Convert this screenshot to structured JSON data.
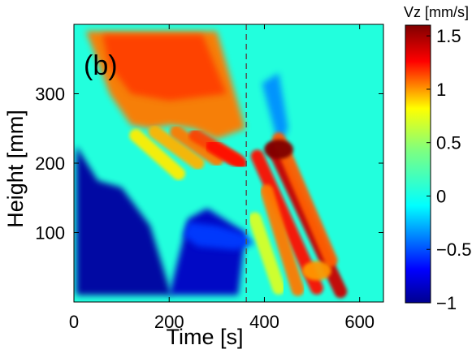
{
  "chart_data": {
    "type": "heatmap",
    "panel_label": "(b)",
    "xlabel": "Time [s]",
    "ylabel": "Height [mm]",
    "colorbar_label": "Vz [mm/s]",
    "xlim": [
      0,
      650
    ],
    "ylim": [
      0,
      400
    ],
    "clim": [
      -1,
      1.6
    ],
    "x_ticks": [
      0,
      200,
      400,
      600
    ],
    "x_tick_labels": [
      "0",
      "200",
      "400",
      "600"
    ],
    "y_ticks": [
      100,
      200,
      300
    ],
    "y_tick_labels": [
      "100",
      "200",
      "300"
    ],
    "colorbar_ticks": [
      -1,
      -0.5,
      0,
      0.5,
      1,
      1.5
    ],
    "colorbar_tick_labels": [
      "−1",
      "−0.5",
      "0",
      "0.5",
      "1",
      "1.5"
    ],
    "colormap": "jet",
    "vertical_marker": {
      "x": 362,
      "style": "dashed",
      "color": "#555555"
    },
    "background_value": 0.05,
    "regions": [
      {
        "name": "upper-descending-front",
        "shape": "polygon",
        "value": 1.05,
        "points": [
          [
            25,
            390
          ],
          [
            300,
            390
          ],
          [
            360,
            250
          ],
          [
            300,
            235
          ],
          [
            250,
            250
          ],
          [
            200,
            255
          ],
          [
            160,
            250
          ],
          [
            120,
            255
          ],
          [
            75,
            300
          ],
          [
            40,
            365
          ]
        ]
      },
      {
        "name": "upper-front-core",
        "shape": "polygon",
        "value": 1.15,
        "points": [
          [
            60,
            385
          ],
          [
            270,
            385
          ],
          [
            320,
            300
          ],
          [
            200,
            290
          ],
          [
            120,
            300
          ],
          [
            75,
            340
          ]
        ]
      },
      {
        "name": "left-descending-plume",
        "shape": "polygon",
        "value": -0.95,
        "points": [
          [
            5,
            10
          ],
          [
            5,
            225
          ],
          [
            50,
            175
          ],
          [
            100,
            165
          ],
          [
            160,
            110
          ],
          [
            205,
            10
          ]
        ]
      },
      {
        "name": "middle-descending-plume",
        "shape": "polygon",
        "value": -0.85,
        "points": [
          [
            200,
            10
          ],
          [
            240,
            120
          ],
          [
            280,
            135
          ],
          [
            360,
            100
          ],
          [
            345,
            10
          ]
        ]
      },
      {
        "name": "lower-center-band",
        "shape": "polygon",
        "value": -0.55,
        "points": [
          [
            230,
            95
          ],
          [
            240,
            115
          ],
          [
            300,
            110
          ],
          [
            350,
            100
          ],
          [
            380,
            85
          ],
          [
            340,
            75
          ],
          [
            260,
            80
          ]
        ]
      },
      {
        "name": "upper-right-negative-band",
        "shape": "polygon",
        "value": -0.35,
        "points": [
          [
            395,
            315
          ],
          [
            430,
            330
          ],
          [
            450,
            250
          ],
          [
            430,
            225
          ]
        ]
      }
    ],
    "streaks": [
      {
        "name": "streak-1",
        "x0": 130,
        "y0": 240,
        "x1": 220,
        "y1": 185,
        "value": 0.85
      },
      {
        "name": "streak-2",
        "x0": 170,
        "y0": 245,
        "x1": 260,
        "y1": 200,
        "value": 0.95
      },
      {
        "name": "streak-3",
        "x0": 215,
        "y0": 245,
        "x1": 300,
        "y1": 205,
        "value": 1.05
      },
      {
        "name": "streak-4",
        "x0": 255,
        "y0": 240,
        "x1": 340,
        "y1": 205,
        "value": 1.15
      },
      {
        "name": "streak-5",
        "x0": 290,
        "y0": 225,
        "x1": 350,
        "y1": 200,
        "value": 1.25
      },
      {
        "name": "diag-1",
        "x0": 385,
        "y0": 210,
        "x1": 510,
        "y1": 20,
        "value": 1.25
      },
      {
        "name": "diag-2",
        "x0": 420,
        "y0": 220,
        "x1": 560,
        "y1": 15,
        "value": 1.4
      },
      {
        "name": "diag-3",
        "x0": 405,
        "y0": 160,
        "x1": 470,
        "y1": 18,
        "value": 1.05
      },
      {
        "name": "diag-4",
        "x0": 430,
        "y0": 235,
        "x1": 540,
        "y1": 60,
        "value": 1.1
      },
      {
        "name": "diag-5",
        "x0": 380,
        "y0": 120,
        "x1": 430,
        "y1": 20,
        "value": 0.7
      }
    ],
    "hotspots": [
      {
        "name": "strong-core",
        "x": 430,
        "y": 220,
        "value": 1.6
      },
      {
        "name": "secondary-core",
        "x": 510,
        "y": 45,
        "value": 1.0
      }
    ]
  }
}
